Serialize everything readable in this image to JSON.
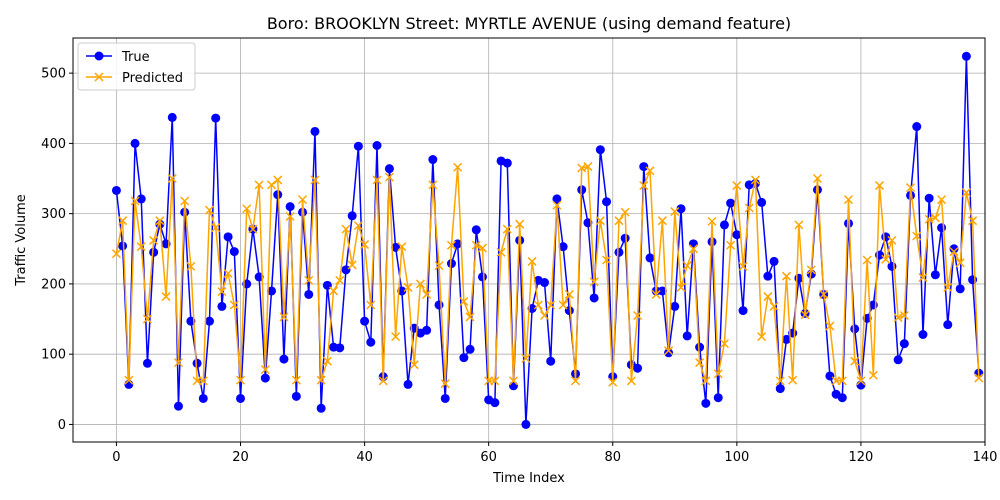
{
  "chart_data": {
    "type": "line",
    "title": "Boro: BROOKLYN Street: MYRTLE AVENUE (using demand feature)",
    "xlabel": "Time Index",
    "ylabel": "Traffic Volume",
    "xlim": [
      -7,
      140
    ],
    "ylim": [
      -25,
      550
    ],
    "xticks": [
      0,
      20,
      40,
      60,
      80,
      100,
      120,
      140
    ],
    "yticks": [
      0,
      100,
      200,
      300,
      400,
      500
    ],
    "grid": true,
    "legend": "upper-left",
    "series": [
      {
        "name": "True",
        "color": "#0000ff",
        "marker": "circle",
        "values": [
          333,
          254,
          57,
          400,
          321,
          87,
          245,
          285,
          257,
          437,
          26,
          302,
          147,
          87,
          37,
          147,
          436,
          168,
          267,
          246,
          37,
          200,
          278,
          210,
          66,
          190,
          327,
          93,
          310,
          40,
          302,
          185,
          417,
          23,
          198,
          110,
          109,
          220,
          297,
          396,
          147,
          117,
          397,
          68,
          364,
          252,
          190,
          57,
          137,
          130,
          134,
          377,
          170,
          37,
          229,
          257,
          95,
          107,
          277,
          210,
          35,
          31,
          375,
          372,
          55,
          262,
          0,
          165,
          205,
          202,
          90,
          321,
          253,
          162,
          72,
          334,
          287,
          180,
          391,
          317,
          68,
          245,
          265,
          85,
          80,
          367,
          237,
          190,
          190,
          102,
          168,
          307,
          126,
          257,
          110,
          30,
          260,
          38,
          284,
          315,
          270,
          162,
          341,
          343,
          316,
          211,
          232,
          51,
          121,
          130,
          208,
          158,
          214,
          334,
          185,
          69,
          43,
          38,
          286,
          136,
          56,
          151,
          170,
          241,
          267,
          225,
          92,
          115,
          326,
          424,
          128,
          322,
          213,
          280,
          142,
          250,
          193,
          524,
          206,
          73
        ]
      },
      {
        "name": "Predicted",
        "color": "#ffa500",
        "marker": "x",
        "values": [
          243,
          290,
          63,
          318,
          253,
          150,
          262,
          290,
          182,
          350,
          88,
          318,
          225,
          62,
          62,
          305,
          280,
          189,
          215,
          170,
          63,
          307,
          278,
          341,
          78,
          341,
          348,
          153,
          296,
          63,
          320,
          205,
          348,
          63,
          90,
          190,
          205,
          278,
          227,
          283,
          256,
          170,
          348,
          62,
          352,
          125,
          253,
          195,
          85,
          200,
          185,
          341,
          226,
          58,
          255,
          366,
          175,
          153,
          255,
          251,
          62,
          62,
          245,
          278,
          62,
          285,
          94,
          232,
          170,
          155,
          170,
          312,
          170,
          185,
          62,
          365,
          367,
          203,
          290,
          234,
          60,
          290,
          302,
          62,
          155,
          340,
          361,
          185,
          290,
          105,
          303,
          195,
          226,
          250,
          88,
          62,
          289,
          72,
          115,
          255,
          340,
          225,
          308,
          348,
          125,
          182,
          168,
          62,
          211,
          63,
          284,
          156,
          220,
          350,
          185,
          140,
          62,
          62,
          320,
          90,
          62,
          234,
          70,
          340,
          235,
          262,
          152,
          155,
          337,
          268,
          209,
          292,
          294,
          320,
          195,
          246,
          230,
          330,
          290,
          66
        ]
      }
    ]
  }
}
